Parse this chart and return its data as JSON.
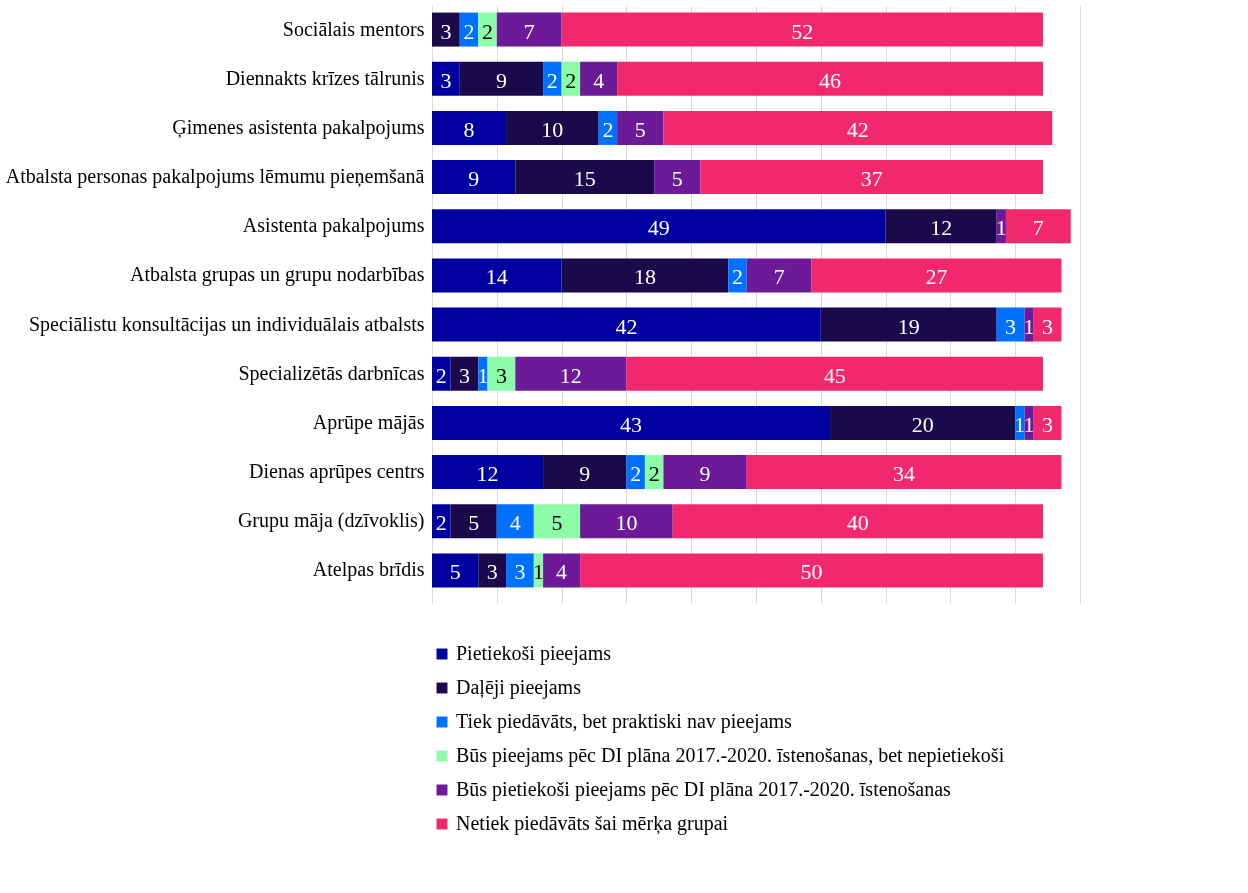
{
  "chart_data": {
    "type": "bar",
    "orientation": "horizontal",
    "stacked": true,
    "data_labels": true,
    "grid": "x",
    "legend": "bottom",
    "tick_labels": "y",
    "categories": [
      "Sociālais mentors",
      "Diennakts krīzes tālrunis",
      "Ģimenes asistenta pakalpojums",
      "Atbalsta personas pakalpojums lēmumu pieņemšanā",
      "Asistenta pakalpojums",
      "Atbalsta grupas un grupu nodarbības",
      "Speciālistu konsultācijas un individuālais atbalsts",
      "Specializētās darbnīcas",
      "Aprūpe mājās",
      "Dienas aprūpes centrs",
      "Grupu māja (dzīvoklis)",
      "Atelpas brīdis"
    ],
    "xlim": [
      0,
      70
    ],
    "xticks": [
      {
        "value": 0,
        "label": null
      },
      {
        "value": 7,
        "label": null
      },
      {
        "value": 14,
        "label": null
      },
      {
        "value": 21,
        "label": null
      },
      {
        "value": 28,
        "label": null
      },
      {
        "value": 35,
        "label": null
      },
      {
        "value": 42,
        "label": null
      },
      {
        "value": 49,
        "label": null
      },
      {
        "value": 56,
        "label": null
      },
      {
        "value": 63,
        "label": null
      },
      {
        "value": 70,
        "label": null
      }
    ],
    "series": [
      {
        "name": "Pietiekoši pieejams",
        "color": "#0000a0",
        "values": [
          null,
          3,
          8,
          9,
          49,
          14,
          42,
          2,
          43,
          12,
          2,
          5
        ]
      },
      {
        "name": "Daļēji pieejams",
        "color": "#1a0a4c",
        "values": [
          3,
          9,
          10,
          15,
          12,
          18,
          19,
          3,
          20,
          9,
          5,
          3
        ]
      },
      {
        "name": "Tiek piedāvāts, bet praktiski nav pieejams",
        "color": "#0070ff",
        "values": [
          2,
          2,
          2,
          null,
          null,
          2,
          3,
          1,
          1,
          2,
          4,
          3
        ]
      },
      {
        "name": "Būs pieejams pēc DI plāna 2017.-2020. īstenošanas, bet nepietiekoši",
        "color": "#8cfca8",
        "values": [
          2,
          2,
          null,
          null,
          null,
          null,
          null,
          3,
          null,
          2,
          5,
          1
        ]
      },
      {
        "name": "Būs pietiekoši pieejams pēc DI plāna 2017.-2020. īstenošanas",
        "color": "#6c1a98",
        "values": [
          7,
          4,
          5,
          5,
          1,
          7,
          1,
          12,
          1,
          9,
          10,
          4
        ]
      },
      {
        "name": "Netiek piedāvāts šai mērķa grupai",
        "color": "#f2286e",
        "values": [
          52,
          46,
          42,
          37,
          7,
          27,
          3,
          45,
          3,
          34,
          40,
          50
        ]
      }
    ]
  }
}
